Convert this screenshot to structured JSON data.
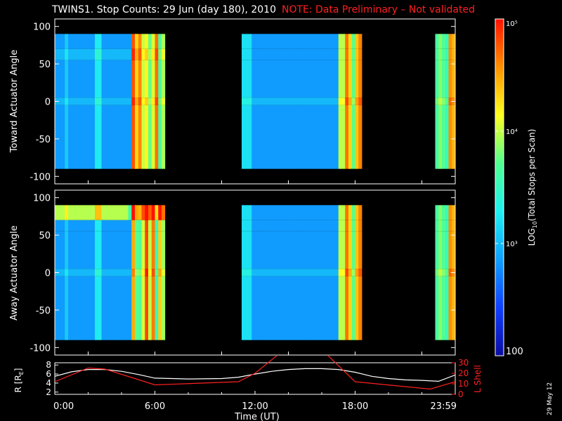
{
  "title": "TWINS1. Stop Counts: 29 Jun (day 180), 2010",
  "note": "NOTE: Data Preliminary – Not validated",
  "date_stamp": "29 May 12",
  "colors": {
    "background": "#000000",
    "axes": "#ffffff",
    "note": "#ff2020",
    "l_shell": "#ff2020",
    "radius": "#ffffff"
  },
  "chart_data": [
    {
      "type": "heatmap",
      "name": "toward",
      "ylabel": "Toward Actuator Angle",
      "ylim": [
        -110,
        110
      ],
      "y_extent": [
        -90,
        90
      ],
      "yticks": [
        100,
        50,
        0,
        -50,
        -100
      ],
      "x_range_hours": [
        0,
        24
      ],
      "segments": [
        {
          "start": 0.0,
          "end": 6.6
        },
        {
          "start": 11.2,
          "end": 18.4
        },
        {
          "start": 22.8,
          "end": 24.0
        }
      ]
    },
    {
      "type": "heatmap",
      "name": "away",
      "ylabel": "Away Actuator Angle",
      "ylim": [
        -110,
        110
      ],
      "y_extent": [
        -90,
        90
      ],
      "yticks": [
        100,
        50,
        0,
        -50,
        -100
      ],
      "x_range_hours": [
        0,
        24
      ],
      "segments": [
        {
          "start": 0.0,
          "end": 6.6
        },
        {
          "start": 11.2,
          "end": 18.4
        },
        {
          "start": 22.8,
          "end": 24.0
        }
      ]
    },
    {
      "type": "line",
      "name": "ephemeris",
      "xlabel": "Time (UT)",
      "xticks": [
        "0:00",
        "6:00",
        "12:00",
        "18:00",
        "23:59"
      ],
      "xtick_hours": [
        0,
        6,
        12,
        18,
        24
      ],
      "ylabel": "R [Rₑ]",
      "ylabel_parts": [
        "R [R",
        "E",
        "]"
      ],
      "yticks": [
        2,
        4,
        6,
        8
      ],
      "ylim": [
        1.5,
        8.5
      ],
      "y2label": "L Shell",
      "y2ticks": [
        0,
        10,
        20,
        30
      ],
      "y2lim": [
        0,
        30
      ],
      "series": [
        {
          "name": "R",
          "x": [
            0,
            1,
            2,
            3,
            4,
            5,
            6,
            8,
            10,
            11,
            12,
            13,
            14,
            15,
            16,
            17,
            18,
            19,
            20,
            21,
            22,
            23,
            24
          ],
          "y": [
            5.5,
            6.5,
            7.0,
            7.0,
            6.6,
            5.9,
            5.1,
            4.9,
            5.0,
            5.3,
            6.0,
            6.6,
            7.0,
            7.2,
            7.2,
            7.0,
            6.4,
            5.5,
            5.0,
            4.7,
            4.6,
            4.4,
            5.8
          ]
        },
        {
          "name": "L Shell",
          "axis": "right",
          "x": [
            0,
            2,
            3,
            6,
            11,
            12,
            13.4,
            16.3,
            18,
            22.5,
            24
          ],
          "y": [
            12,
            25,
            24,
            9,
            12,
            20,
            38,
            38,
            12,
            5,
            12
          ]
        }
      ]
    }
  ],
  "colorbar": {
    "label_parts": [
      "LOG",
      "10",
      "(Total Stops per Scan)"
    ],
    "log_min": 2,
    "log_max": 5,
    "tick_values": [
      100,
      1000,
      10000,
      100000
    ],
    "tick_labels": [
      "100",
      "10³",
      "10⁴",
      "10⁵"
    ],
    "stops": [
      "#0c0ca0",
      "#1040ff",
      "#10a0ff",
      "#20f0f0",
      "#50ff90",
      "#ffff20",
      "#ff9000",
      "#ff1000"
    ]
  }
}
